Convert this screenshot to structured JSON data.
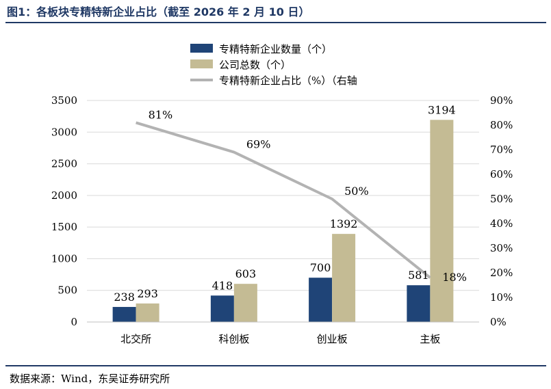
{
  "figure": {
    "title": "图1：各板块专精特新企业占比（截至 2026 年 2 月 10 日）",
    "source": "数据来源：Wind，东吴证券研究所"
  },
  "colors": {
    "series_count": "#1f4477",
    "series_total": "#c4bb94",
    "series_ratio": "#b3b3b3",
    "rule": "#1f3864",
    "grid": "#d9d9d9"
  },
  "chart_data": {
    "type": "bar",
    "categories": [
      "北交所",
      "科创板",
      "创业板",
      "主板"
    ],
    "series": [
      {
        "name": "专精特新企业数量（个）",
        "type": "bar",
        "axis": "left",
        "values": [
          238,
          418,
          700,
          581
        ],
        "labels": [
          "238",
          "418",
          "700",
          "581"
        ]
      },
      {
        "name": "公司总数（个）",
        "type": "bar",
        "axis": "left",
        "values": [
          293,
          603,
          1392,
          3194
        ],
        "labels": [
          "293",
          "603",
          "1392",
          "3194"
        ]
      },
      {
        "name": "专精特新企业占比（%）（右轴",
        "type": "line",
        "axis": "right",
        "values": [
          81,
          69,
          50,
          18
        ],
        "labels": [
          "81%",
          "69%",
          "50%",
          "18%"
        ]
      }
    ],
    "ylim": [
      0,
      3500
    ],
    "yticks": [
      "0",
      "500",
      "1000",
      "1500",
      "2000",
      "2500",
      "3000",
      "3500"
    ],
    "y2lim": [
      0,
      90
    ],
    "y2ticks": [
      "0%",
      "10%",
      "20%",
      "30%",
      "40%",
      "50%",
      "60%",
      "70%",
      "80%",
      "90%"
    ],
    "grid": true,
    "legend_position": "top-center"
  }
}
